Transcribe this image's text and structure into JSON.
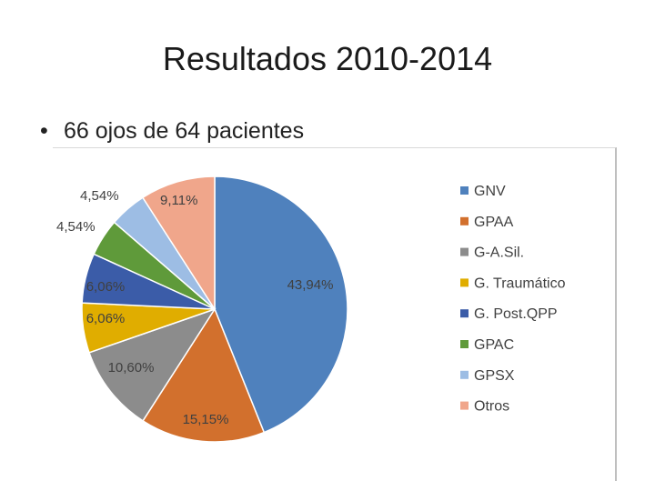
{
  "slide": {
    "title": "Resultados 2010-2014",
    "bullet": "66 ojos de 64 pacientes",
    "bullet_glyph": "•"
  },
  "chart_data": {
    "type": "pie",
    "title": "",
    "legend_position": "right",
    "start_angle_deg": 0,
    "direction": "clockwise",
    "categories": [
      "GNV",
      "GPAA",
      "G-A.Sil.",
      "G. Traumático",
      "G. Post.QPP",
      "GPAC",
      "GPSX",
      "Otros"
    ],
    "values": [
      43.94,
      15.15,
      10.6,
      6.06,
      6.06,
      4.54,
      4.54,
      9.11
    ],
    "labels": [
      "43,94%",
      "15,15%",
      "10,60%",
      "6,06%",
      "6,06%",
      "4,54%",
      "4,54%",
      "9,11%"
    ],
    "colors": [
      "#4f81bd",
      "#d2702d",
      "#8c8c8c",
      "#e0ad00",
      "#3b5ca8",
      "#5f9a3a",
      "#9dbde4",
      "#f0a68b"
    ]
  }
}
